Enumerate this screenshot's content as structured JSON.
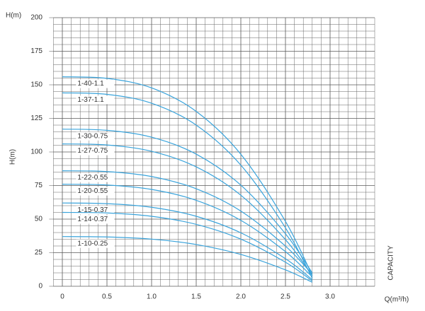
{
  "chart_data": {
    "type": "line",
    "y_label_top": "H(m)",
    "y_label": "H(m)",
    "x_label": "Q(m³/h)",
    "side_label": "CAPACITY",
    "x": [
      0,
      0.5,
      1,
      1.5,
      2,
      2.5,
      2.8
    ],
    "series": [
      {
        "name": "1-40-1.1",
        "color": "#3aa4dc",
        "values": [
          156,
          154.8,
          147.7,
          130.2,
          98.3,
          48.3,
          8
        ]
      },
      {
        "name": "1-37-1.1",
        "color": "#3aa4dc",
        "values": [
          144,
          142.9,
          136.3,
          120,
          90.2,
          43.5,
          6
        ]
      },
      {
        "name": "1-30-0.75",
        "color": "#3aa4dc",
        "values": [
          117,
          116.1,
          111,
          98.4,
          75.3,
          39.1,
          10
        ]
      },
      {
        "name": "1-27-0.75",
        "color": "#3aa4dc",
        "values": [
          106,
          105.2,
          100.5,
          88.9,
          67.8,
          34.7,
          8
        ]
      },
      {
        "name": "1-22-0.55",
        "color": "#3aa4dc",
        "values": [
          86,
          85.4,
          81.7,
          72.6,
          56,
          29.9,
          9
        ]
      },
      {
        "name": "1-20-0.55",
        "color": "#3aa4dc",
        "values": [
          76,
          75.4,
          72.1,
          64,
          49.1,
          25.8,
          7
        ]
      },
      {
        "name": "1-15-0.37",
        "color": "#3aa4dc",
        "values": [
          62,
          61.5,
          58.8,
          52.1,
          39.8,
          20.5,
          5
        ]
      },
      {
        "name": "1-14-0.37",
        "color": "#3aa4dc",
        "values": [
          55,
          54.6,
          52.1,
          46.1,
          35.1,
          17.9,
          4
        ]
      },
      {
        "name": "1-10-0.25",
        "color": "#3aa4dc",
        "values": [
          37,
          36.7,
          35.1,
          31.1,
          23.7,
          12.2,
          3
        ]
      }
    ],
    "xlim": [
      -0.1,
      3.5
    ],
    "ylim": [
      0,
      200
    ],
    "xticks": [
      0,
      0.5,
      {
        "value": 1,
        "label": "1.0"
      },
      1.5,
      {
        "value": 2,
        "label": "2.0"
      },
      2.5,
      {
        "value": 3,
        "label": "3.0"
      }
    ],
    "yticks": [
      0,
      25,
      50,
      75,
      100,
      125,
      150,
      175,
      200
    ],
    "grid": true
  }
}
